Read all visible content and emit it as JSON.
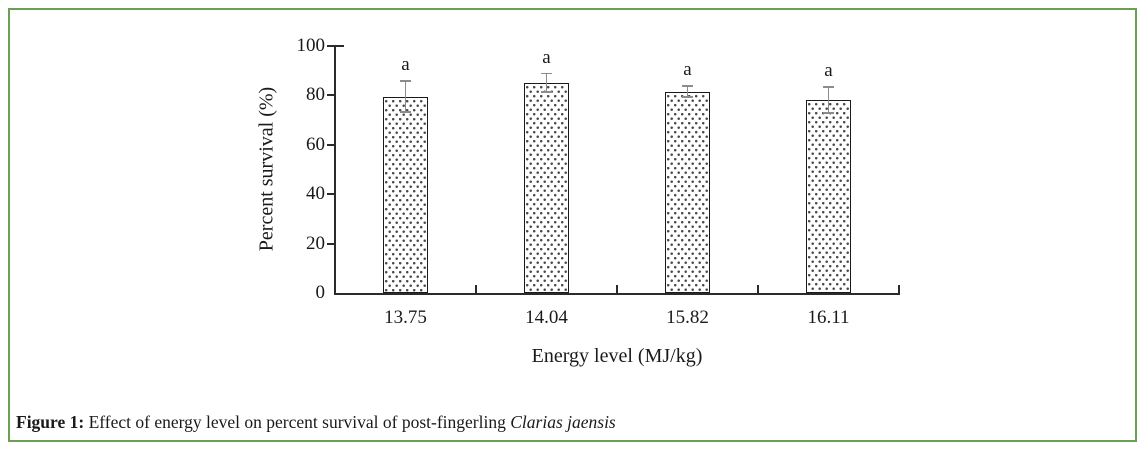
{
  "figure": {
    "frame_color": "#6ba053",
    "caption": {
      "prefix": "Figure 1:",
      "body": " Effect of energy level on percent survival of post-fingerling ",
      "species": "Clarias jaensis"
    }
  },
  "chart_data": {
    "type": "bar",
    "title": "",
    "categories": [
      "13.75",
      "14.04",
      "15.82",
      "16.11"
    ],
    "values": [
      79.5,
      85,
      81.5,
      78
    ],
    "error_bars": [
      6.3,
      3.8,
      2.2,
      5.2
    ],
    "bar_labels": [
      "a",
      "a",
      "a",
      "a"
    ],
    "xlabel": "Energy level (MJ/kg)",
    "ylabel": "Percent survival (%)",
    "yticks": [
      0,
      20,
      40,
      60,
      80,
      100
    ],
    "ylim": [
      0,
      100
    ],
    "grid": false,
    "legend": false,
    "bar_fill": "white-dotted-pattern",
    "bar_border_color": "#1a1a1a",
    "error_bar_color": "#8c8c8c",
    "axis_color": "#2b2b2b",
    "text_color": "#1a1a1a"
  }
}
